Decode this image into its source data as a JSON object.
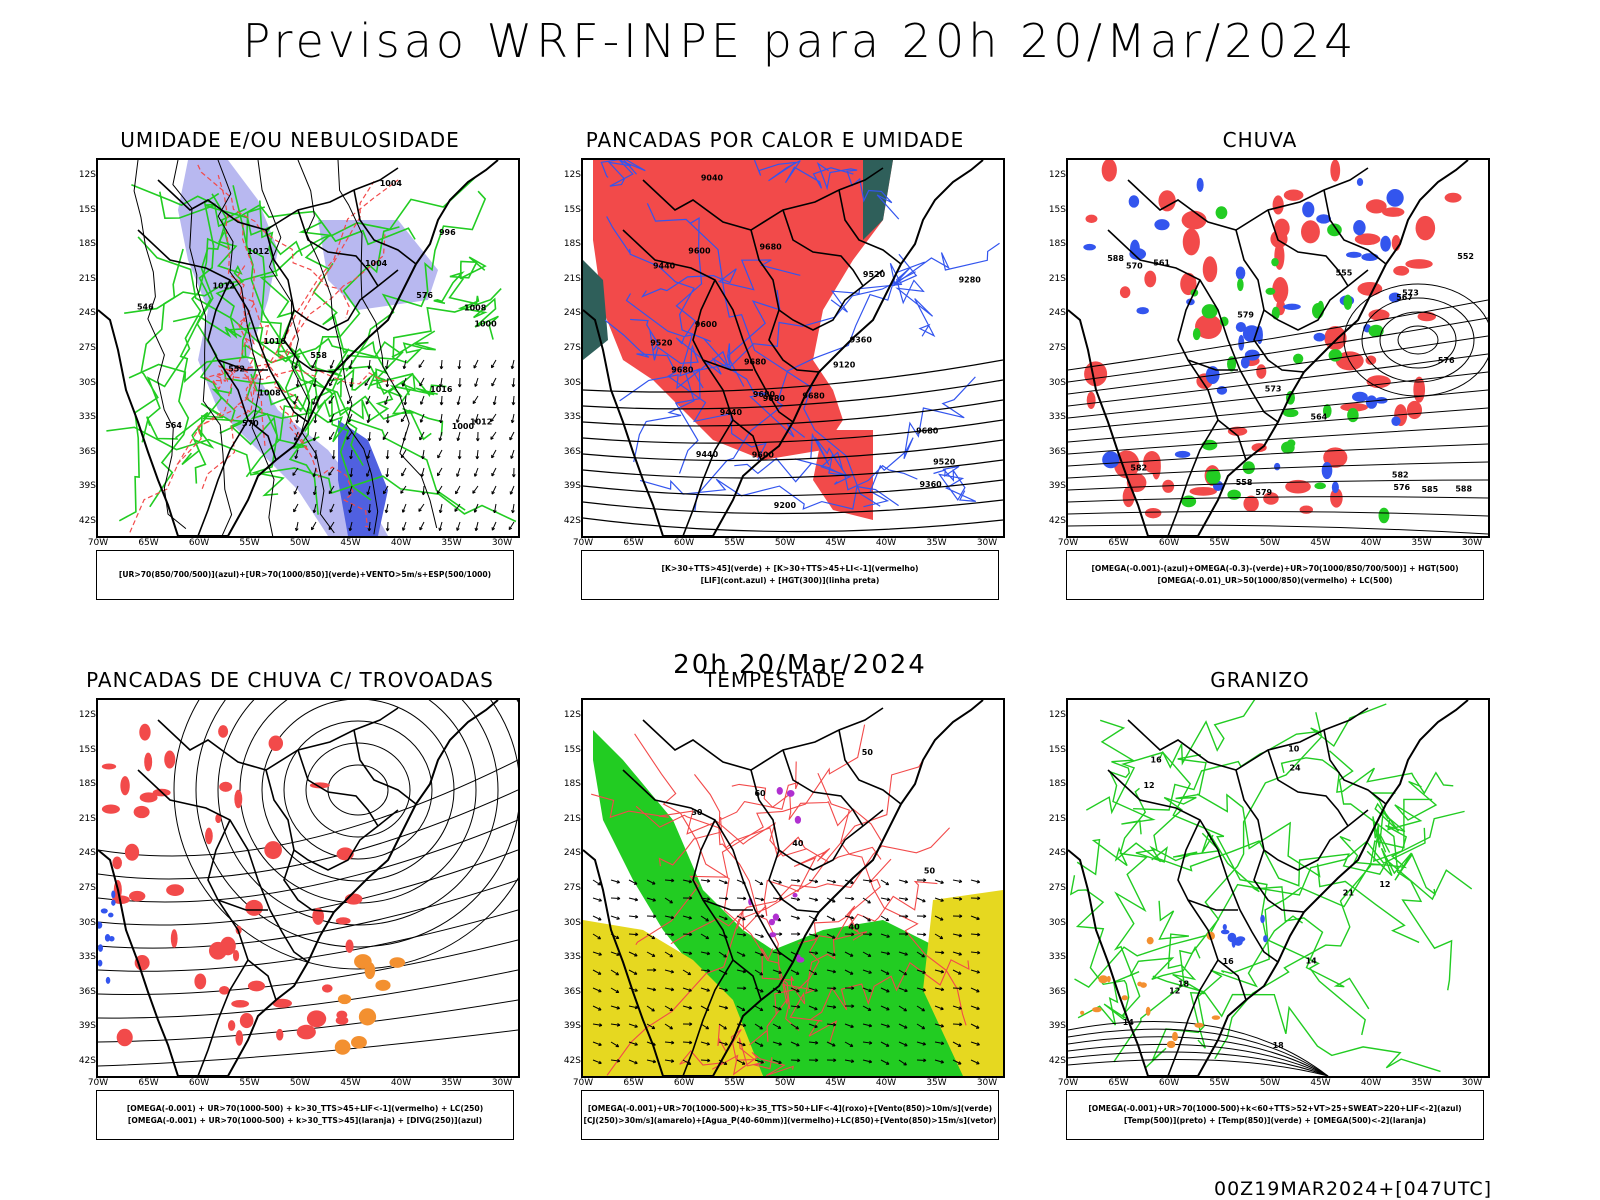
{
  "header": {
    "title": "Previsao WRF-INPE  para 20h 20/Mar/2024"
  },
  "middle": {
    "title": "20h 20/Mar/2024"
  },
  "footer": {
    "run": "00Z19MAR2024+[047UTC]"
  },
  "axes": {
    "lat": [
      "12S",
      "15S",
      "18S",
      "21S",
      "24S",
      "27S",
      "30S",
      "33S",
      "36S",
      "39S",
      "42S"
    ],
    "lon": [
      "70W",
      "65W",
      "60W",
      "55W",
      "50W",
      "45W",
      "40W",
      "35W",
      "30W"
    ]
  },
  "colors": {
    "red": "#f24a4a",
    "green": "#22cc22",
    "blue": "#3355ee",
    "lavender": "#b8b8f0",
    "yellow": "#e6d820",
    "orange": "#f39030",
    "darkteal": "#2f5f5a",
    "purple": "#b030d0"
  },
  "panels": [
    {
      "id": "umidade",
      "title": "UMIDADE E/OU NEBULOSIDADE",
      "legend": [
        "[UR>70(850/700/500)](azul)+[UR>70(1000/850)](verde)+VENTO>5m/s+ESP(500/1000)"
      ],
      "labels": [
        "1012",
        "1008",
        "1004",
        "1000",
        "1016",
        "1012",
        "1008",
        "1004",
        "1000",
        "996",
        "1012",
        "1016",
        "576",
        "570",
        "564",
        "558",
        "552",
        "546"
      ]
    },
    {
      "id": "pancadas-calor",
      "title": "PANCADAS POR CALOR E UMIDADE",
      "legend": [
        "[K>30+TTS>45](verde) + [K>30+TTS>45+LI<-1](vermelho)",
        "[LIF](cont.azul) + [HGT(300)](linha preta)"
      ],
      "labels": [
        "9680",
        "9680",
        "9680",
        "9680",
        "9680",
        "9600",
        "9520",
        "9680",
        "9680",
        "9600",
        "9520",
        "9440",
        "9440",
        "9360",
        "9280",
        "9200",
        "9120",
        "9040",
        "9600",
        "9520",
        "9440",
        "9360"
      ]
    },
    {
      "id": "chuva",
      "title": "CHUVA",
      "legend": [
        "[OMEGA(-0.001)-(azul)+OMEGA(-0.3)-(verde)+UR>70(1000/850/700/500)] + HGT(500)",
        "[OMEGA(-0.01)_UR>50(1000/850)(vermelho) + LC(500)"
      ],
      "labels": [
        "588",
        "585",
        "588",
        "582",
        "579",
        "576",
        "573",
        "570",
        "567",
        "564",
        "561",
        "558",
        "555",
        "552",
        "582",
        "579",
        "576",
        "573"
      ]
    },
    {
      "id": "pancadas-trovoadas",
      "title": "PANCADAS DE CHUVA C/ TROVOADAS",
      "legend": [
        "[OMEGA(-0.001) + UR>70(1000-500) + k>30_TTS>45+LIF<-1](vermelho) + LC(250)",
        "[OMEGA(-0.001) + UR>70(1000-500) + k>30_TTS>45](laranja) + [DIVG(250)](azul)"
      ],
      "labels": []
    },
    {
      "id": "tempestade",
      "title": "TEMPESTADE",
      "legend": [
        "[OMEGA(-0.001)+UR>70(1000-500)+k>35_TTS>50+LIF<-4](roxo)+[Vento(850)>10m/s](verde)",
        "[CJ(250)>30m/s](amarelo)+[Agua_P(40-60mm)](vermelho)+LC(850)+[Vento(850)>15m/s](vetor)"
      ],
      "labels": [
        "40",
        "50",
        "60",
        "30",
        "40",
        "50"
      ]
    },
    {
      "id": "granizo",
      "title": "GRANIZO",
      "legend": [
        "[OMEGA(-0.001)+UR>70(1000-500)+k<60+TTS>52+VT>25+SWEAT>220+LIF<-2](azul)",
        "[Temp(500)](preto) + [Temp(850)](verde) + [OMEGA(500)<-2](laranja)"
      ],
      "labels": [
        "18",
        "16",
        "14",
        "12",
        "10",
        "12",
        "14",
        "16",
        "18",
        "21",
        "24",
        "12"
      ]
    }
  ]
}
